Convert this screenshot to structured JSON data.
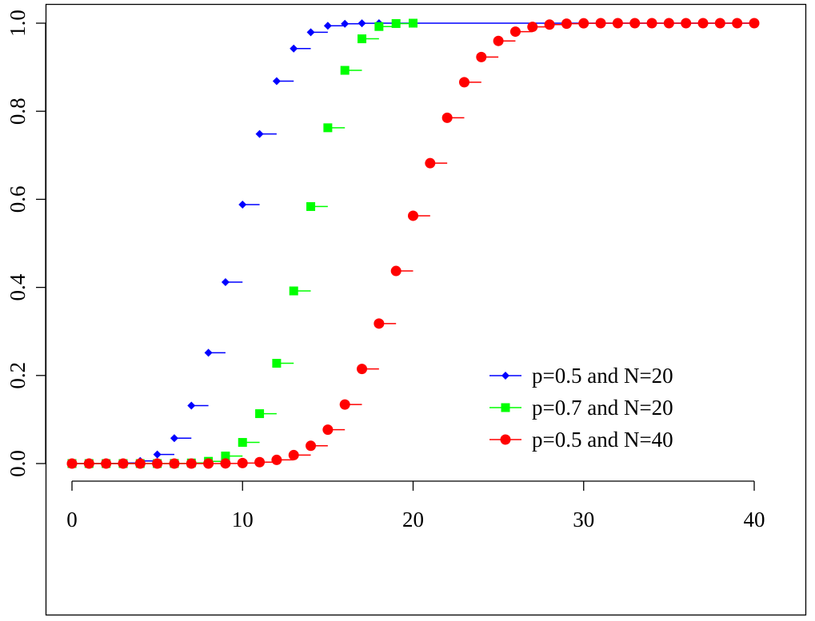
{
  "chart_data": {
    "type": "scatter",
    "title": "",
    "xlabel": "",
    "ylabel": "",
    "xlim": [
      0,
      40
    ],
    "ylim": [
      0,
      1
    ],
    "grid": false,
    "legend_position": "bottom-right",
    "x_ticks": [
      "0",
      "10",
      "20",
      "30",
      "40"
    ],
    "y_ticks": [
      "0.0",
      "0.2",
      "0.4",
      "0.6",
      "0.8",
      "1.0"
    ],
    "x_tick_values": [
      0,
      10,
      20,
      30,
      40
    ],
    "y_tick_values": [
      0,
      0.2,
      0.4,
      0.6,
      0.8,
      1.0
    ],
    "series": [
      {
        "name": "p=0.5 and N=20",
        "color": "#0000FF",
        "marker": "diamond",
        "extend_last": true,
        "x": [
          0,
          1,
          2,
          3,
          4,
          5,
          6,
          7,
          8,
          9,
          10,
          11,
          12,
          13,
          14,
          15,
          16,
          17,
          18,
          19,
          20
        ],
        "values": [
          1e-06,
          2e-05,
          0.0002,
          0.0013,
          0.0059,
          0.0207,
          0.0577,
          0.1316,
          0.2517,
          0.4119,
          0.5881,
          0.7483,
          0.8684,
          0.9423,
          0.9793,
          0.9941,
          0.9987,
          0.9998,
          1,
          1,
          1
        ]
      },
      {
        "name": "p=0.7 and N=20",
        "color": "#00FF00",
        "marker": "square",
        "extend_last": false,
        "x": [
          0,
          1,
          2,
          3,
          4,
          5,
          6,
          7,
          8,
          9,
          10,
          11,
          12,
          13,
          14,
          15,
          16,
          17,
          18,
          19,
          20
        ],
        "values": [
          0,
          0,
          0,
          0,
          0,
          4e-05,
          0.0003,
          0.0013,
          0.0051,
          0.0171,
          0.048,
          0.1133,
          0.2277,
          0.392,
          0.5836,
          0.7625,
          0.8929,
          0.9645,
          0.9924,
          0.9992,
          1
        ]
      },
      {
        "name": "p=0.5 and N=40",
        "color": "#FF0000",
        "marker": "circle",
        "extend_last": false,
        "x": [
          0,
          1,
          2,
          3,
          4,
          5,
          6,
          7,
          8,
          9,
          10,
          11,
          12,
          13,
          14,
          15,
          16,
          17,
          18,
          19,
          20,
          21,
          22,
          23,
          24,
          25,
          26,
          27,
          28,
          29,
          30,
          31,
          32,
          33,
          34,
          35,
          36,
          37,
          38,
          39,
          40
        ],
        "values": [
          0,
          0,
          0,
          0,
          0,
          0,
          0,
          0,
          0,
          0.0003,
          0.0011,
          0.0032,
          0.0083,
          0.0192,
          0.0403,
          0.0769,
          0.1341,
          0.2148,
          0.3179,
          0.4373,
          0.5627,
          0.6821,
          0.7852,
          0.8659,
          0.9231,
          0.9597,
          0.9808,
          0.9917,
          0.9968,
          0.9989,
          0.9997,
          1,
          1,
          1,
          1,
          1,
          1,
          1,
          1,
          1,
          1
        ]
      }
    ]
  }
}
